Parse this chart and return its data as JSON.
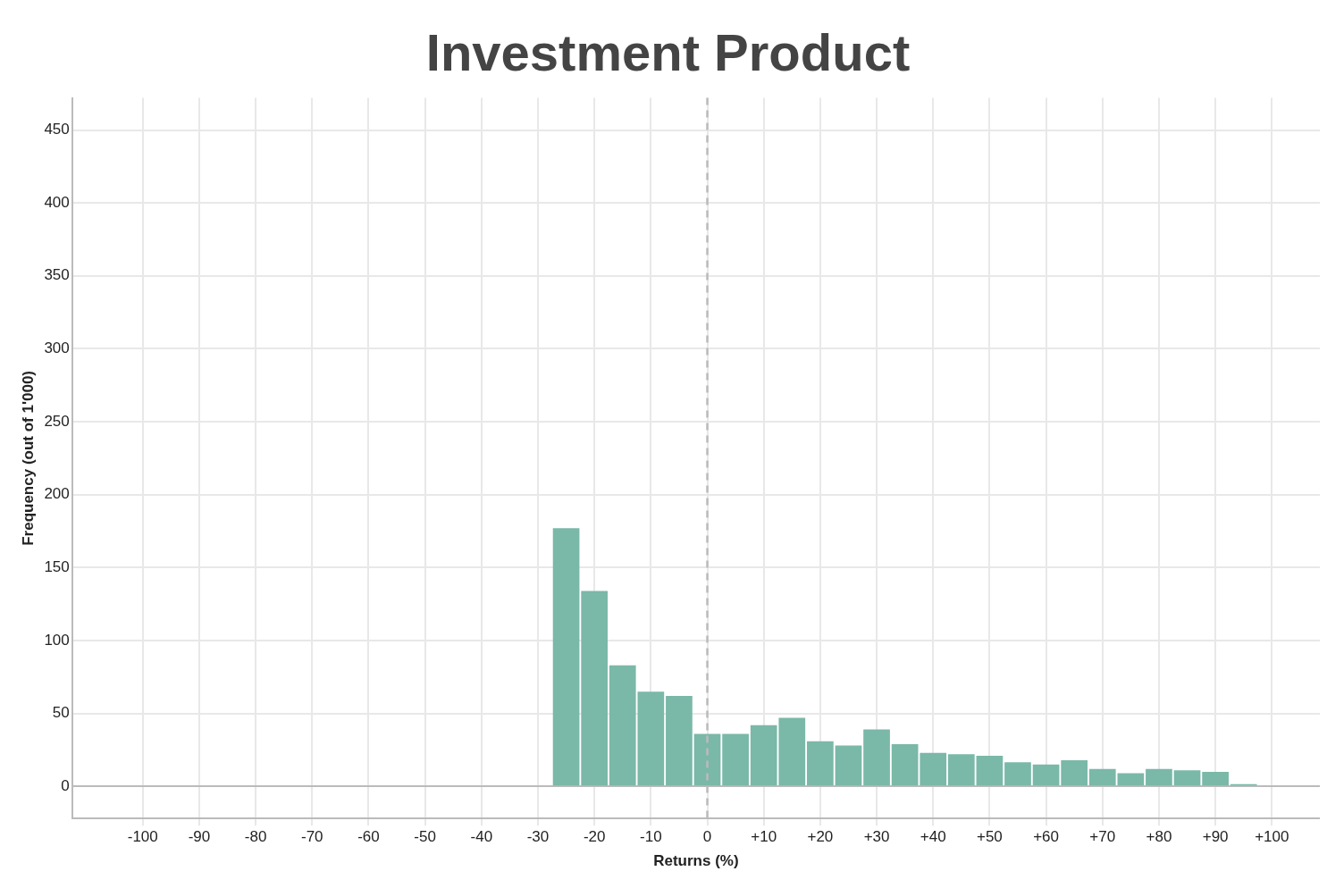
{
  "chart_data": {
    "type": "histogram",
    "title": "Investment Product",
    "xlabel": "Returns (%)",
    "ylabel": "Frequency (out of 1'000)",
    "bins": [
      -27.5,
      -22.5,
      -17.5,
      -12.5,
      -7.5,
      -2.5,
      2.5,
      7.5,
      12.5,
      17.5,
      22.5,
      27.5,
      32.5,
      37.5,
      42.5,
      47.5,
      52.5,
      57.5,
      62.5,
      67.5,
      72.5,
      77.5,
      82.5,
      87.5,
      92.5,
      97.5
    ],
    "values": [
      177,
      134,
      83,
      65,
      62,
      36,
      36,
      42,
      47,
      31,
      28,
      39,
      29,
      23,
      22,
      21,
      16.5,
      15,
      18,
      12,
      9,
      12,
      11,
      10,
      1.5
    ],
    "color": "#7ab8a8",
    "xlim": [
      -112.5,
      108.5
    ],
    "ylim": [
      -22,
      472
    ],
    "xticks": [
      -100,
      -90,
      -80,
      -70,
      -60,
      -50,
      -40,
      -30,
      -20,
      -10,
      0,
      {
        "value": 10,
        "label": "+10"
      },
      {
        "value": 20,
        "label": "+20"
      },
      {
        "value": 30,
        "label": "+30"
      },
      {
        "value": 40,
        "label": "+40"
      },
      {
        "value": 50,
        "label": "+50"
      },
      {
        "value": 60,
        "label": "+60"
      },
      {
        "value": 70,
        "label": "+70"
      },
      {
        "value": 80,
        "label": "+80"
      },
      {
        "value": 90,
        "label": "+90"
      },
      {
        "value": 100,
        "label": "+100"
      }
    ],
    "yticks": [
      0,
      50,
      100,
      150,
      200,
      250,
      300,
      350,
      400,
      450
    ],
    "ref_lines": [
      {
        "axis": "x",
        "value": 0,
        "color": "#bbbbbb",
        "line_style": "dashed"
      }
    ],
    "grid": true
  }
}
